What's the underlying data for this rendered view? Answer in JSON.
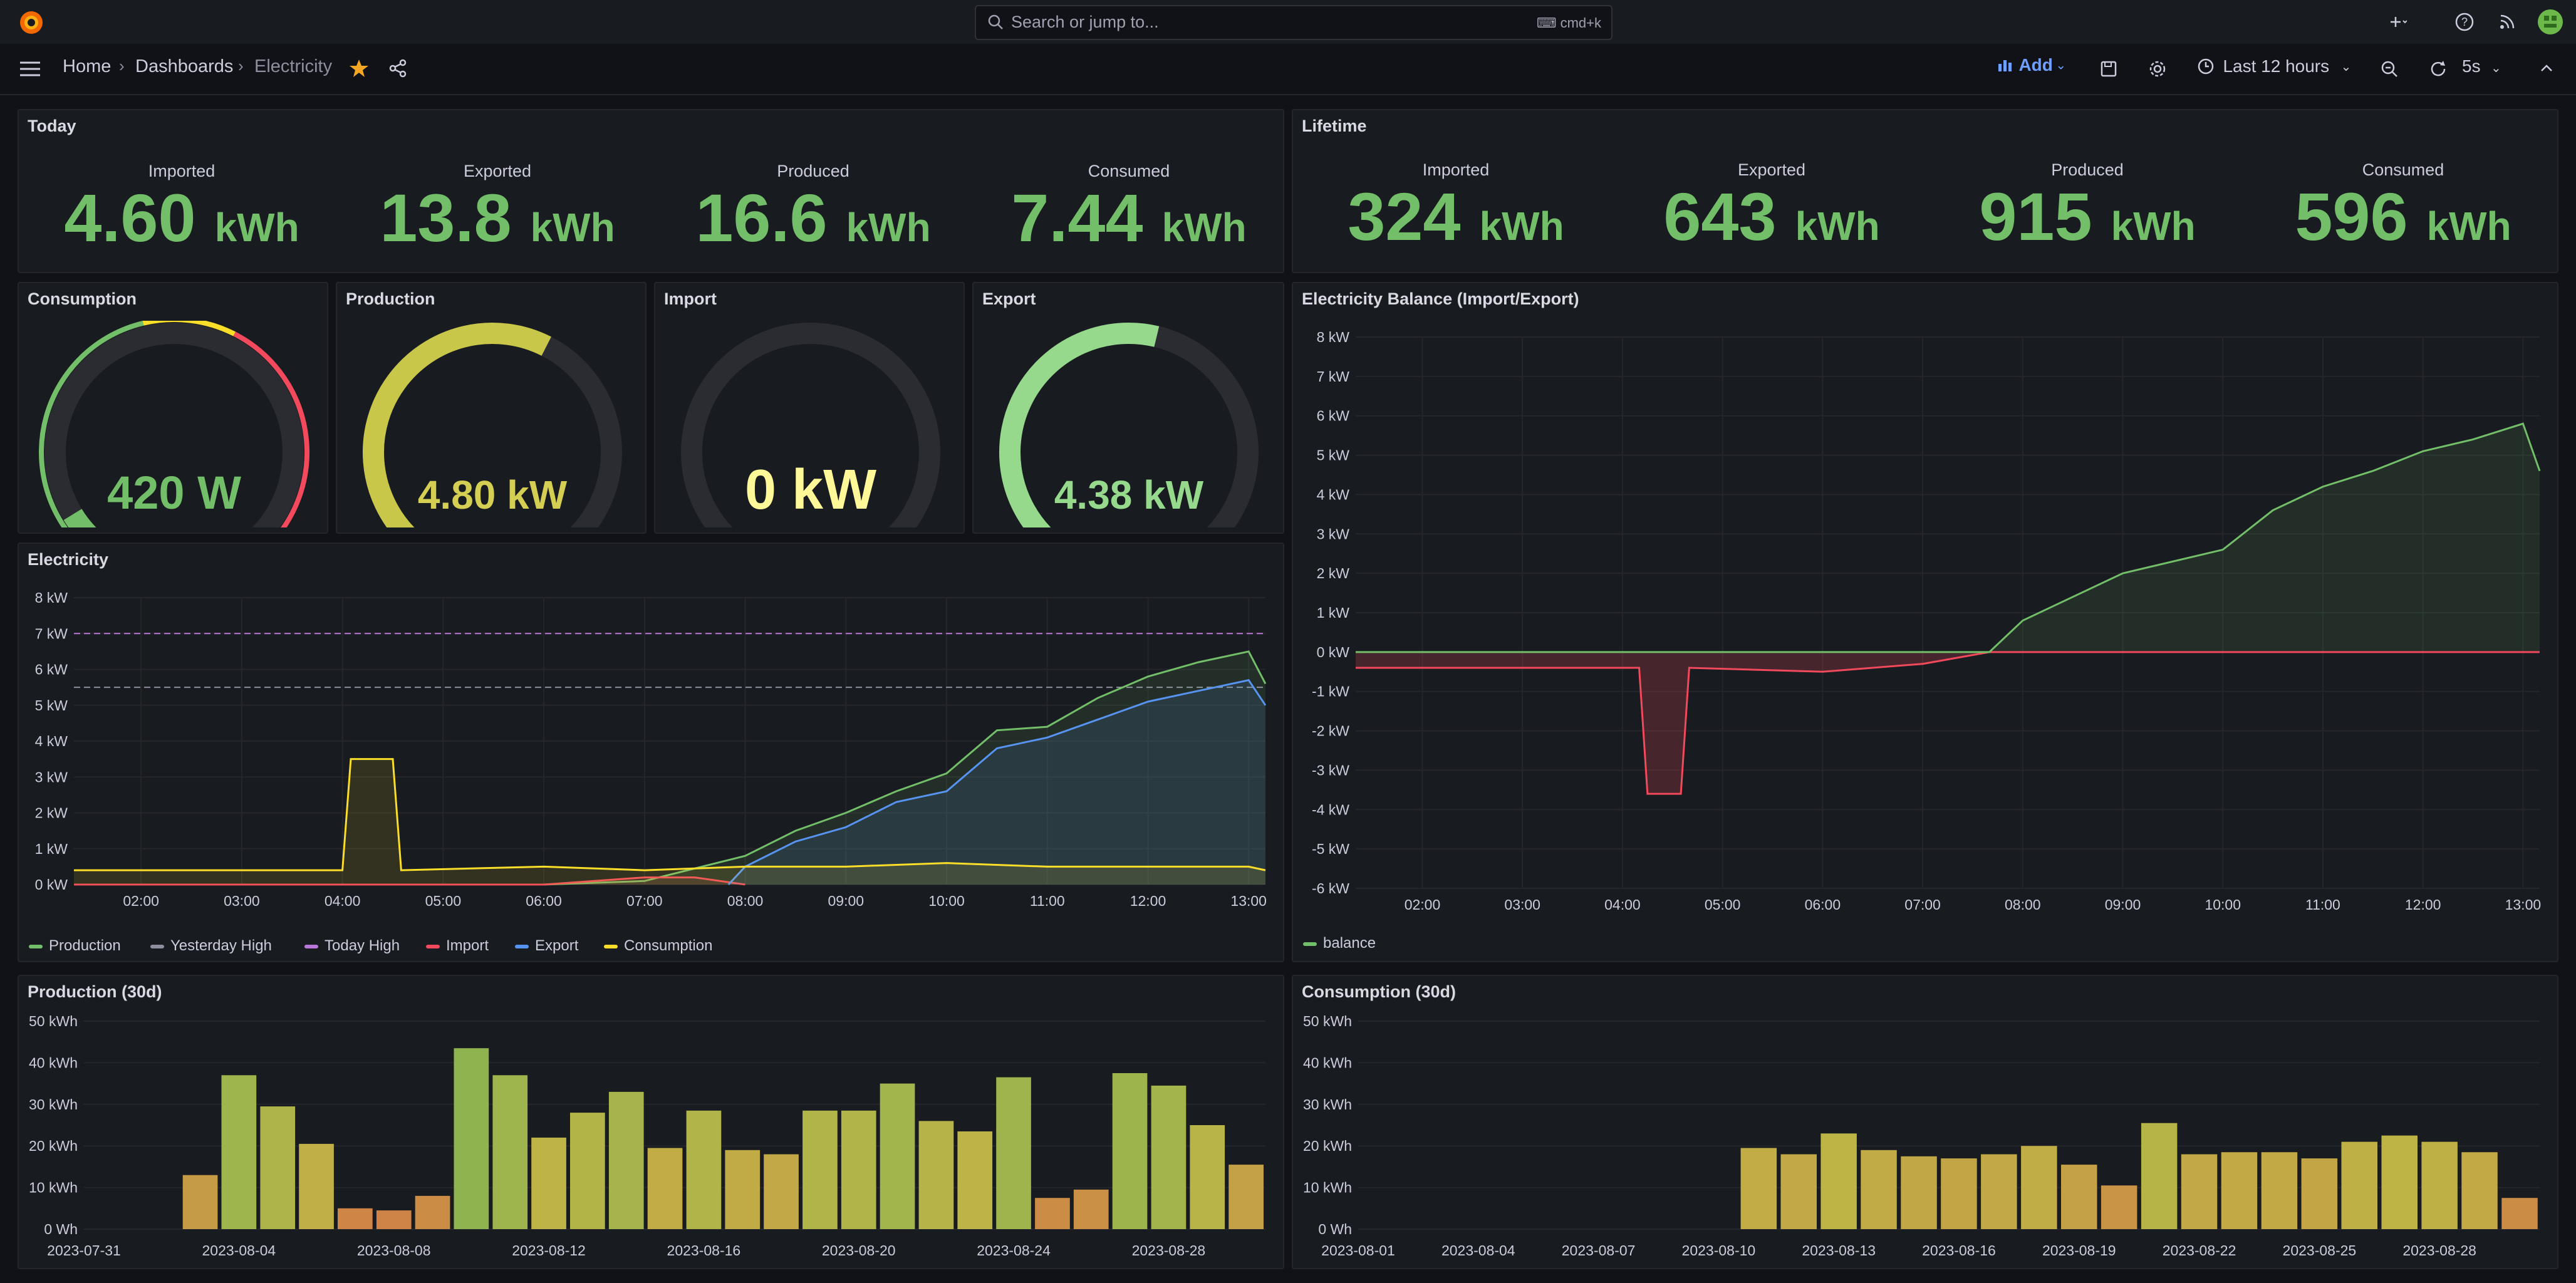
{
  "search": {
    "placeholder": "Search or jump to...",
    "shortcut": "cmd+k"
  },
  "breadcrumb": {
    "home": "Home",
    "dashboards": "Dashboards",
    "current": "Electricity"
  },
  "toolbar": {
    "add_label": "Add",
    "time_range": "Last 12 hours",
    "refresh": "5s"
  },
  "today": {
    "title": "Today",
    "stats": [
      {
        "label": "Imported",
        "value": "4.60",
        "unit": "kWh"
      },
      {
        "label": "Exported",
        "value": "13.8",
        "unit": "kWh"
      },
      {
        "label": "Produced",
        "value": "16.6",
        "unit": "kWh"
      },
      {
        "label": "Consumed",
        "value": "7.44",
        "unit": "kWh"
      }
    ]
  },
  "lifetime": {
    "title": "Lifetime",
    "stats": [
      {
        "label": "Imported",
        "value": "324",
        "unit": "kWh"
      },
      {
        "label": "Exported",
        "value": "643",
        "unit": "kWh"
      },
      {
        "label": "Produced",
        "value": "915",
        "unit": "kWh"
      },
      {
        "label": "Consumed",
        "value": "596",
        "unit": "kWh"
      }
    ]
  },
  "gauges": [
    {
      "title": "Consumption",
      "value": "420 W",
      "fraction": 0.05,
      "color": "#73bf69",
      "value_color": "#73bf69",
      "threshold_track": true
    },
    {
      "title": "Production",
      "value": "4.80 kW",
      "fraction": 0.6,
      "color": "#c8c74a",
      "value_color": "#d4cf53",
      "threshold_track": false
    },
    {
      "title": "Import",
      "value": "0 kW",
      "fraction": 0.0,
      "color": "#fade2a",
      "value_color": "#fff899",
      "threshold_track": false
    },
    {
      "title": "Export",
      "value": "4.38 kW",
      "fraction": 0.55,
      "color": "#96d98d",
      "value_color": "#96d98d",
      "threshold_track": false
    }
  ],
  "chart_data": [
    {
      "id": "electricity",
      "title": "Electricity",
      "type": "line",
      "x_ticks": [
        "02:00",
        "03:00",
        "04:00",
        "05:00",
        "06:00",
        "07:00",
        "08:00",
        "09:00",
        "10:00",
        "11:00",
        "12:00",
        "13:00"
      ],
      "y_ticks": [
        "0 kW",
        "1 kW",
        "2 kW",
        "3 kW",
        "4 kW",
        "5 kW",
        "6 kW",
        "7 kW",
        "8 kW"
      ],
      "ylim": [
        0,
        8
      ],
      "reference_lines": [
        {
          "name": "Yesterday High",
          "value": 5.5
        },
        {
          "name": "Today High",
          "value": 7.0
        }
      ],
      "series": [
        {
          "name": "Production",
          "color": "#73bf69",
          "x": [
            "01:20",
            "06:00",
            "07:00",
            "08:00",
            "08:30",
            "09:00",
            "09:30",
            "10:00",
            "10:30",
            "11:00",
            "11:30",
            "12:00",
            "12:30",
            "13:00",
            "13:10"
          ],
          "values": [
            0,
            0,
            0.1,
            0.8,
            1.5,
            2.0,
            2.6,
            3.1,
            4.3,
            4.4,
            5.2,
            5.8,
            6.2,
            6.5,
            5.6
          ]
        },
        {
          "name": "Yesterday High",
          "color": "#8e8e9f",
          "values": []
        },
        {
          "name": "Today High",
          "color": "#b877d9",
          "values": []
        },
        {
          "name": "Import",
          "color": "#f2495c",
          "x": [
            "01:20",
            "06:00",
            "07:00",
            "07:30",
            "08:00"
          ],
          "values": [
            0,
            0,
            0.2,
            0.2,
            0
          ]
        },
        {
          "name": "Export",
          "color": "#5794f2",
          "x": [
            "07:50",
            "08:00",
            "08:30",
            "09:00",
            "09:30",
            "10:00",
            "10:30",
            "11:00",
            "11:30",
            "12:00",
            "12:30",
            "13:00",
            "13:10"
          ],
          "values": [
            0,
            0.5,
            1.2,
            1.6,
            2.3,
            2.6,
            3.8,
            4.1,
            4.6,
            5.1,
            5.4,
            5.7,
            5.0
          ]
        },
        {
          "name": "Consumption",
          "color": "#fade2a",
          "x": [
            "01:20",
            "03:00",
            "04:00",
            "04:05",
            "04:30",
            "04:35",
            "06:00",
            "07:00",
            "08:00",
            "09:00",
            "10:00",
            "11:00",
            "12:00",
            "13:00",
            "13:10"
          ],
          "values": [
            0.4,
            0.4,
            0.4,
            3.5,
            3.5,
            0.4,
            0.5,
            0.4,
            0.5,
            0.5,
            0.6,
            0.5,
            0.5,
            0.5,
            0.4
          ]
        }
      ],
      "legend": [
        "Production",
        "Yesterday High",
        "Today High",
        "Import",
        "Export",
        "Consumption"
      ]
    },
    {
      "id": "balance",
      "title": "Electricity Balance (Import/Export)",
      "type": "area",
      "x_ticks": [
        "02:00",
        "03:00",
        "04:00",
        "05:00",
        "06:00",
        "07:00",
        "08:00",
        "09:00",
        "10:00",
        "11:00",
        "12:00",
        "13:00"
      ],
      "y_ticks": [
        "-6 kW",
        "-5 kW",
        "-4 kW",
        "-3 kW",
        "-2 kW",
        "-1 kW",
        "0 kW",
        "1 kW",
        "2 kW",
        "3 kW",
        "4 kW",
        "5 kW",
        "6 kW",
        "7 kW",
        "8 kW"
      ],
      "ylim": [
        -6,
        8
      ],
      "series": [
        {
          "name": "balance",
          "color": "#73bf69",
          "x": [
            "01:20",
            "03:00",
            "04:00",
            "04:10",
            "04:15",
            "04:35",
            "04:40",
            "06:00",
            "07:00",
            "07:40",
            "08:00",
            "09:00",
            "10:00",
            "10:30",
            "11:00",
            "11:30",
            "12:00",
            "12:30",
            "13:00",
            "13:10"
          ],
          "values": [
            -0.4,
            -0.4,
            -0.4,
            -0.4,
            -3.6,
            -3.6,
            -0.4,
            -0.5,
            -0.3,
            0,
            0.8,
            2.0,
            2.6,
            3.6,
            4.2,
            4.6,
            5.1,
            5.4,
            5.8,
            4.6
          ]
        }
      ],
      "legend": [
        "balance"
      ]
    },
    {
      "id": "production30",
      "title": "Production (30d)",
      "type": "bar",
      "x_ticks": [
        "2023-07-31",
        "2023-08-04",
        "2023-08-08",
        "2023-08-12",
        "2023-08-16",
        "2023-08-20",
        "2023-08-24",
        "2023-08-28"
      ],
      "y_ticks": [
        "0 Wh",
        "10 kWh",
        "20 kWh",
        "30 kWh",
        "40 kWh",
        "50 kWh"
      ],
      "ylim": [
        0,
        50
      ],
      "categories": [
        "2023-08-03",
        "2023-08-04",
        "2023-08-05",
        "2023-08-06",
        "2023-08-07",
        "2023-08-08",
        "2023-08-09",
        "2023-08-10",
        "2023-08-11",
        "2023-08-12",
        "2023-08-13",
        "2023-08-14",
        "2023-08-15",
        "2023-08-16",
        "2023-08-17",
        "2023-08-18",
        "2023-08-19",
        "2023-08-20",
        "2023-08-21",
        "2023-08-22",
        "2023-08-23",
        "2023-08-24",
        "2023-08-25",
        "2023-08-26",
        "2023-08-27",
        "2023-08-28",
        "2023-08-29",
        "2023-08-30"
      ],
      "values": [
        13,
        37,
        29.5,
        20.5,
        5,
        4.5,
        8,
        43.5,
        37,
        22,
        28,
        33,
        19.5,
        28.5,
        19,
        18,
        28.5,
        28.5,
        35,
        26,
        23.5,
        36.5,
        7.5,
        9.5,
        37.5,
        34.5,
        25,
        15.5
      ]
    },
    {
      "id": "consumption30",
      "title": "Consumption (30d)",
      "type": "bar",
      "x_ticks": [
        "2023-08-01",
        "2023-08-04",
        "2023-08-07",
        "2023-08-10",
        "2023-08-13",
        "2023-08-16",
        "2023-08-19",
        "2023-08-22",
        "2023-08-25",
        "2023-08-28"
      ],
      "y_ticks": [
        "0 Wh",
        "10 kWh",
        "20 kWh",
        "30 kWh",
        "40 kWh",
        "50 kWh"
      ],
      "ylim": [
        0,
        50
      ],
      "categories": [
        "2023-08-11",
        "2023-08-12",
        "2023-08-13",
        "2023-08-14",
        "2023-08-15",
        "2023-08-16",
        "2023-08-17",
        "2023-08-18",
        "2023-08-19",
        "2023-08-20",
        "2023-08-21",
        "2023-08-22",
        "2023-08-23",
        "2023-08-24",
        "2023-08-25",
        "2023-08-26",
        "2023-08-27",
        "2023-08-28",
        "2023-08-29",
        "2023-08-30"
      ],
      "values": [
        19.5,
        18,
        23,
        19,
        17.5,
        17,
        18,
        20,
        15.5,
        10.5,
        25.5,
        18,
        18.5,
        18.5,
        17,
        21,
        22.5,
        21,
        18.5,
        7.5
      ]
    }
  ]
}
